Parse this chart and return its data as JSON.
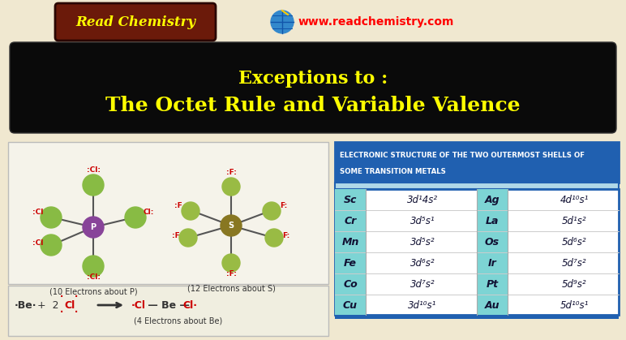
{
  "bg_color": "#f0e8d0",
  "title_line1": "Exceptions to :",
  "title_line2": "The Octet Rule and Variable Valence",
  "title_bg": "#0a0a0a",
  "title_color": "#ffff00",
  "header_bg": "#2060b0",
  "header_color": "#ffffff",
  "table_col_bg": "#7dd4d4",
  "table_border": "#2060b0",
  "elements_left": [
    "Sc",
    "Cr",
    "Mn",
    "Fe",
    "Co",
    "Cu"
  ],
  "elements_right": [
    "Ag",
    "La",
    "Os",
    "Ir",
    "Pt",
    "Au"
  ],
  "readchem_color": "#ffff00",
  "url_color": "#ff0000",
  "logo_bg": "#6b1a0a",
  "bottom_caption1": "(10 Electrons about P)",
  "bottom_caption2": "(12 Electrons about S)",
  "bottom_caption3": "(4 Electrons about Be)",
  "panel_bg": "#f5f3ea",
  "be_panel_bg": "#f0eee0"
}
